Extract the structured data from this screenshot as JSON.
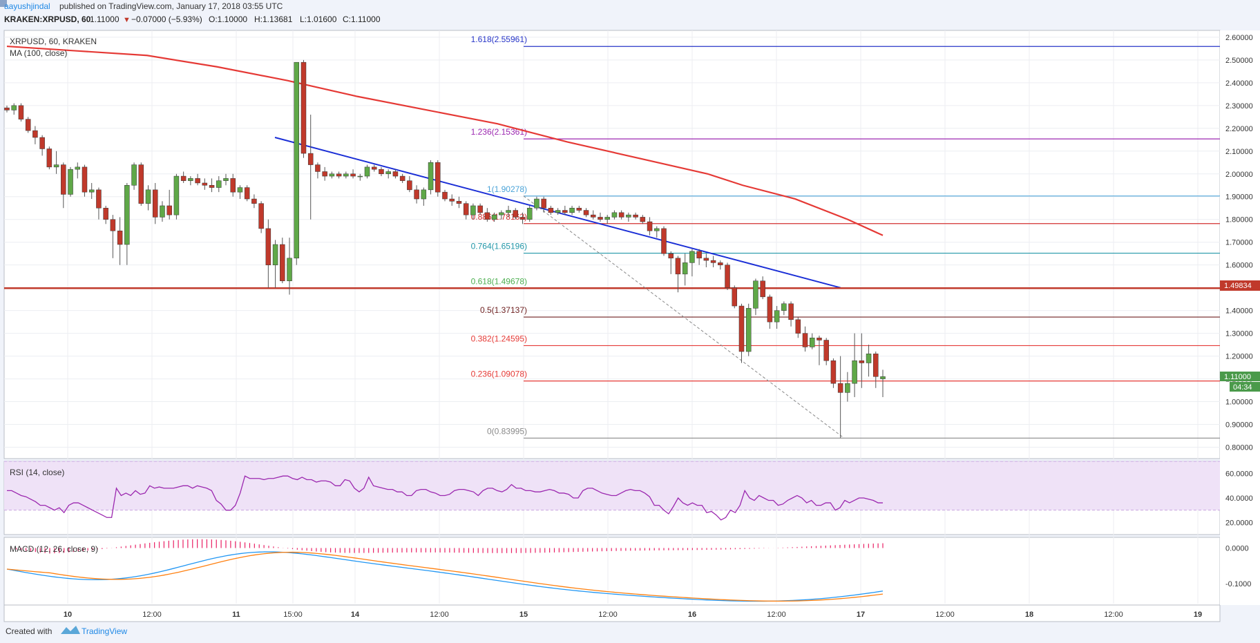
{
  "header": {
    "author": "aayushjindal",
    "published": " published on TradingView.com, January 17, 2018 03:55 UTC",
    "symbol": "KRAKEN:XRPUSD, 60",
    "last": "1.11000",
    "change": "−0.07000 (−5.93%)",
    "ohlc": {
      "o": "1.10000",
      "h": "1.13681",
      "l": "1.01600",
      "c": "1.11000"
    }
  },
  "main": {
    "legend_symbol": "XRPUSD, 60, KRAKEN",
    "legend_ma": "MA (100, close)",
    "price_tag": "1.11000",
    "timer_tag": "04:34",
    "level_tag": "1.49834"
  },
  "colors": {
    "up": "#53b987",
    "up_body": "#5fa848",
    "down": "#c0392b",
    "ma": "#e53935",
    "trend": "#1a2ed6",
    "support": "#c0392b",
    "rsi": "#9b27af",
    "macd": "#2196f3",
    "signal": "#ff7f0e",
    "hist": "#e91e63"
  },
  "rsi": {
    "label": "RSI (14, close)",
    "ticks": [
      "60.0000",
      "40.0000",
      "20.0000"
    ]
  },
  "macd": {
    "label": "MACD (12, 26, close, 9)",
    "ticks": [
      "0.0000",
      "-0.1000"
    ]
  },
  "footer": {
    "created": "Created with",
    "brand": "TradingView"
  },
  "chart_data": {
    "type": "candlestick",
    "x_ticks": [
      "10",
      "12:00",
      "11",
      "15:00",
      "14",
      "12:00",
      "15",
      "12:00",
      "16",
      "12:00",
      "17",
      "12:00",
      "18",
      "12:00",
      "19"
    ],
    "y_ticks": [
      "2.60000",
      "2.50000",
      "2.40000",
      "2.30000",
      "2.20000",
      "2.10000",
      "2.00000",
      "1.90000",
      "1.80000",
      "1.70000",
      "1.60000",
      "1.50000",
      "1.40000",
      "1.30000",
      "1.20000",
      "1.10000",
      "1.00000",
      "0.90000",
      "0.80000"
    ],
    "ylim": [
      0.75,
      2.63
    ],
    "candles": [
      [
        2.29,
        2.3,
        2.27,
        2.28
      ],
      [
        2.28,
        2.31,
        2.26,
        2.3
      ],
      [
        2.3,
        2.31,
        2.23,
        2.24
      ],
      [
        2.24,
        2.25,
        2.18,
        2.19
      ],
      [
        2.19,
        2.21,
        2.13,
        2.16
      ],
      [
        2.16,
        2.17,
        2.08,
        2.11
      ],
      [
        2.11,
        2.12,
        2.02,
        2.03
      ],
      [
        2.03,
        2.1,
        2.0,
        2.04
      ],
      [
        2.04,
        2.05,
        1.85,
        1.91
      ],
      [
        1.91,
        2.03,
        1.9,
        2.02
      ],
      [
        2.02,
        2.05,
        1.98,
        2.03
      ],
      [
        2.03,
        2.04,
        1.9,
        1.92
      ],
      [
        1.92,
        1.96,
        1.89,
        1.93
      ],
      [
        1.93,
        1.94,
        1.8,
        1.85
      ],
      [
        1.85,
        1.86,
        1.78,
        1.8
      ],
      [
        1.8,
        1.82,
        1.63,
        1.75
      ],
      [
        1.75,
        1.81,
        1.6,
        1.69
      ],
      [
        1.69,
        1.96,
        1.6,
        1.95
      ],
      [
        1.95,
        2.05,
        1.93,
        2.04
      ],
      [
        2.04,
        2.05,
        1.86,
        1.87
      ],
      [
        1.87,
        1.95,
        1.84,
        1.93
      ],
      [
        1.93,
        1.96,
        1.78,
        1.81
      ],
      [
        1.81,
        1.88,
        1.79,
        1.86
      ],
      [
        1.86,
        1.93,
        1.8,
        1.82
      ],
      [
        1.82,
        2.0,
        1.8,
        1.99
      ],
      [
        1.99,
        2.01,
        1.96,
        1.97
      ],
      [
        1.97,
        1.99,
        1.95,
        1.98
      ],
      [
        1.98,
        2.0,
        1.95,
        1.96
      ],
      [
        1.96,
        1.98,
        1.93,
        1.95
      ],
      [
        1.95,
        1.98,
        1.92,
        1.94
      ],
      [
        1.94,
        1.99,
        1.92,
        1.97
      ],
      [
        1.97,
        2.0,
        1.95,
        1.98
      ],
      [
        1.98,
        2.0,
        1.9,
        1.92
      ],
      [
        1.92,
        1.95,
        1.89,
        1.94
      ],
      [
        1.94,
        1.95,
        1.88,
        1.89
      ],
      [
        1.89,
        1.91,
        1.85,
        1.87
      ],
      [
        1.87,
        1.88,
        1.74,
        1.76
      ],
      [
        1.76,
        1.8,
        1.5,
        1.6
      ],
      [
        1.6,
        1.71,
        1.5,
        1.69
      ],
      [
        1.69,
        1.72,
        1.52,
        1.53
      ],
      [
        1.53,
        1.72,
        1.47,
        1.63
      ],
      [
        1.63,
        2.49,
        1.6,
        2.49
      ],
      [
        2.49,
        2.5,
        2.07,
        2.09
      ],
      [
        2.09,
        2.26,
        1.8,
        2.04
      ],
      [
        2.04,
        2.05,
        1.98,
        2.01
      ],
      [
        2.01,
        2.03,
        1.97,
        1.99
      ],
      [
        1.99,
        2.01,
        1.98,
        2.0
      ],
      [
        2.0,
        2.01,
        1.98,
        1.99
      ],
      [
        1.99,
        2.01,
        1.98,
        2.0
      ],
      [
        2.0,
        2.02,
        1.98,
        1.99
      ],
      [
        1.99,
        2.0,
        1.97,
        1.99
      ],
      [
        1.99,
        2.04,
        1.98,
        2.03
      ],
      [
        2.03,
        2.04,
        2.01,
        2.02
      ],
      [
        2.02,
        2.03,
        1.99,
        2.0
      ],
      [
        2.0,
        2.02,
        1.98,
        2.01
      ],
      [
        2.01,
        2.02,
        1.98,
        1.99
      ],
      [
        1.99,
        2.0,
        1.96,
        1.97
      ],
      [
        1.97,
        1.99,
        1.92,
        1.93
      ],
      [
        1.93,
        1.95,
        1.87,
        1.89
      ],
      [
        1.89,
        1.94,
        1.86,
        1.93
      ],
      [
        1.93,
        2.06,
        1.91,
        2.05
      ],
      [
        2.05,
        2.06,
        1.9,
        1.92
      ],
      [
        1.92,
        1.93,
        1.88,
        1.89
      ],
      [
        1.89,
        1.91,
        1.86,
        1.88
      ],
      [
        1.88,
        1.9,
        1.85,
        1.87
      ],
      [
        1.87,
        1.88,
        1.8,
        1.82
      ],
      [
        1.82,
        1.87,
        1.8,
        1.86
      ],
      [
        1.86,
        1.87,
        1.82,
        1.83
      ],
      [
        1.83,
        1.85,
        1.79,
        1.8
      ],
      [
        1.8,
        1.83,
        1.79,
        1.82
      ],
      [
        1.82,
        1.84,
        1.8,
        1.83
      ],
      [
        1.83,
        1.86,
        1.81,
        1.84
      ],
      [
        1.84,
        1.85,
        1.8,
        1.81
      ],
      [
        1.81,
        1.83,
        1.78,
        1.8
      ],
      [
        1.8,
        1.86,
        1.79,
        1.85
      ],
      [
        1.85,
        1.9,
        1.84,
        1.89
      ],
      [
        1.89,
        1.9,
        1.83,
        1.85
      ],
      [
        1.85,
        1.86,
        1.82,
        1.83
      ],
      [
        1.83,
        1.85,
        1.82,
        1.84
      ],
      [
        1.84,
        1.86,
        1.82,
        1.83
      ],
      [
        1.83,
        1.86,
        1.82,
        1.85
      ],
      [
        1.85,
        1.86,
        1.83,
        1.84
      ],
      [
        1.84,
        1.85,
        1.81,
        1.82
      ],
      [
        1.82,
        1.84,
        1.8,
        1.81
      ],
      [
        1.81,
        1.83,
        1.79,
        1.8
      ],
      [
        1.8,
        1.82,
        1.78,
        1.81
      ],
      [
        1.81,
        1.84,
        1.8,
        1.83
      ],
      [
        1.83,
        1.84,
        1.8,
        1.81
      ],
      [
        1.81,
        1.83,
        1.79,
        1.82
      ],
      [
        1.82,
        1.83,
        1.8,
        1.81
      ],
      [
        1.81,
        1.82,
        1.78,
        1.79
      ],
      [
        1.79,
        1.81,
        1.73,
        1.75
      ],
      [
        1.75,
        1.77,
        1.72,
        1.76
      ],
      [
        1.76,
        1.77,
        1.64,
        1.65
      ],
      [
        1.65,
        1.66,
        1.56,
        1.63
      ],
      [
        1.63,
        1.64,
        1.48,
        1.56
      ],
      [
        1.56,
        1.65,
        1.51,
        1.61
      ],
      [
        1.61,
        1.67,
        1.55,
        1.66
      ],
      [
        1.66,
        1.67,
        1.6,
        1.63
      ],
      [
        1.63,
        1.65,
        1.59,
        1.62
      ],
      [
        1.62,
        1.64,
        1.59,
        1.61
      ],
      [
        1.61,
        1.62,
        1.58,
        1.6
      ],
      [
        1.6,
        1.61,
        1.49,
        1.5
      ],
      [
        1.5,
        1.51,
        1.41,
        1.42
      ],
      [
        1.42,
        1.43,
        1.17,
        1.22
      ],
      [
        1.22,
        1.43,
        1.2,
        1.41
      ],
      [
        1.41,
        1.54,
        1.38,
        1.53
      ],
      [
        1.53,
        1.55,
        1.45,
        1.46
      ],
      [
        1.46,
        1.47,
        1.32,
        1.35
      ],
      [
        1.35,
        1.42,
        1.32,
        1.4
      ],
      [
        1.4,
        1.44,
        1.38,
        1.43
      ],
      [
        1.43,
        1.44,
        1.33,
        1.36
      ],
      [
        1.36,
        1.37,
        1.28,
        1.3
      ],
      [
        1.3,
        1.33,
        1.22,
        1.24
      ],
      [
        1.24,
        1.3,
        1.23,
        1.28
      ],
      [
        1.28,
        1.29,
        1.16,
        1.27
      ],
      [
        1.27,
        1.28,
        1.16,
        1.18
      ],
      [
        1.18,
        1.19,
        1.06,
        1.08
      ],
      [
        1.08,
        1.2,
        0.84,
        1.04
      ],
      [
        1.04,
        1.13,
        1.0,
        1.08
      ],
      [
        1.08,
        1.3,
        1.02,
        1.18
      ],
      [
        1.18,
        1.3,
        1.06,
        1.17
      ],
      [
        1.17,
        1.25,
        1.11,
        1.21
      ],
      [
        1.21,
        1.22,
        1.06,
        1.11
      ],
      [
        1.1,
        1.14,
        1.02,
        1.11
      ]
    ],
    "ma100": [
      [
        2.56,
        0
      ],
      [
        2.54,
        20
      ],
      [
        2.52,
        40
      ],
      [
        2.47,
        60
      ],
      [
        2.41,
        80
      ],
      [
        2.34,
        100
      ],
      [
        2.28,
        120
      ],
      [
        2.22,
        140
      ],
      [
        2.14,
        160
      ],
      [
        2.07,
        180
      ],
      [
        2.0,
        200
      ],
      [
        1.95,
        210
      ],
      [
        1.89,
        225
      ],
      [
        1.8,
        240
      ],
      [
        1.73,
        250
      ]
    ],
    "trendline": {
      "from": [
        398,
        2.16
      ],
      "to": [
        1217,
        1.5
      ]
    },
    "support": 1.49834,
    "fibonacci": [
      {
        "label": "1.618(2.55961)",
        "value": 2.55961,
        "color": "#2634c8"
      },
      {
        "label": "1.236(2.15361)",
        "value": 2.15361,
        "color": "#9c27b0"
      },
      {
        "label": "1(1.90278)",
        "value": 1.90278,
        "color": "#4aa3d8"
      },
      {
        "label": "0.886(1.78162)",
        "value": 1.78162,
        "color": "#d32f2f"
      },
      {
        "label": "0.764(1.65196)",
        "value": 1.65196,
        "color": "#2196a8"
      },
      {
        "label": "0.618(1.49678)",
        "value": 1.49678,
        "color": "#4caf50"
      },
      {
        "label": "0.5(1.37137)",
        "value": 1.37137,
        "color": "#6d1f1f"
      },
      {
        "label": "0.382(1.24595)",
        "value": 1.24595,
        "color": "#e53935"
      },
      {
        "label": "0.236(1.09078)",
        "value": 1.09078,
        "color": "#e53935"
      },
      {
        "label": "0(0.83995)",
        "value": 0.83995,
        "color": "#888888"
      }
    ],
    "rsi_values": [
      46,
      46,
      44,
      42,
      41,
      39,
      37,
      34,
      34,
      32,
      30,
      32,
      28,
      34,
      36,
      36,
      34,
      32,
      30,
      28,
      26,
      24,
      24,
      48,
      42,
      44,
      42,
      46,
      43,
      44,
      50,
      48,
      49,
      48,
      48,
      48,
      49,
      50,
      50,
      48,
      50,
      49,
      48,
      46,
      38,
      35,
      30,
      30,
      34,
      44,
      58,
      56,
      56,
      56,
      55,
      56,
      56,
      57,
      58,
      58,
      56,
      55,
      57,
      55,
      55,
      53,
      54,
      54,
      53,
      50,
      50,
      55,
      54,
      48,
      45,
      48,
      57,
      50,
      49,
      48,
      47,
      47,
      45,
      45,
      42,
      42,
      46,
      47,
      47,
      45,
      44,
      42,
      42,
      43,
      46,
      47,
      47,
      46,
      45,
      42,
      46,
      48,
      48,
      46,
      45,
      47,
      51,
      48,
      48,
      46,
      46,
      45,
      45,
      46,
      47,
      46,
      44,
      44,
      43,
      40,
      40,
      46,
      48,
      48,
      46,
      44,
      43,
      42,
      42,
      44,
      46,
      47,
      46,
      46,
      44,
      41,
      34,
      34,
      30,
      27,
      33,
      40,
      36,
      34,
      36,
      34,
      34,
      28,
      29,
      26,
      22,
      24,
      30,
      28,
      34,
      46,
      40,
      38,
      42,
      40,
      38,
      38,
      34,
      35,
      38,
      40,
      42,
      40,
      36,
      38,
      34,
      34,
      36,
      36,
      30,
      32,
      38,
      36,
      38,
      40,
      40,
      39,
      38,
      36,
      36
    ]
  }
}
